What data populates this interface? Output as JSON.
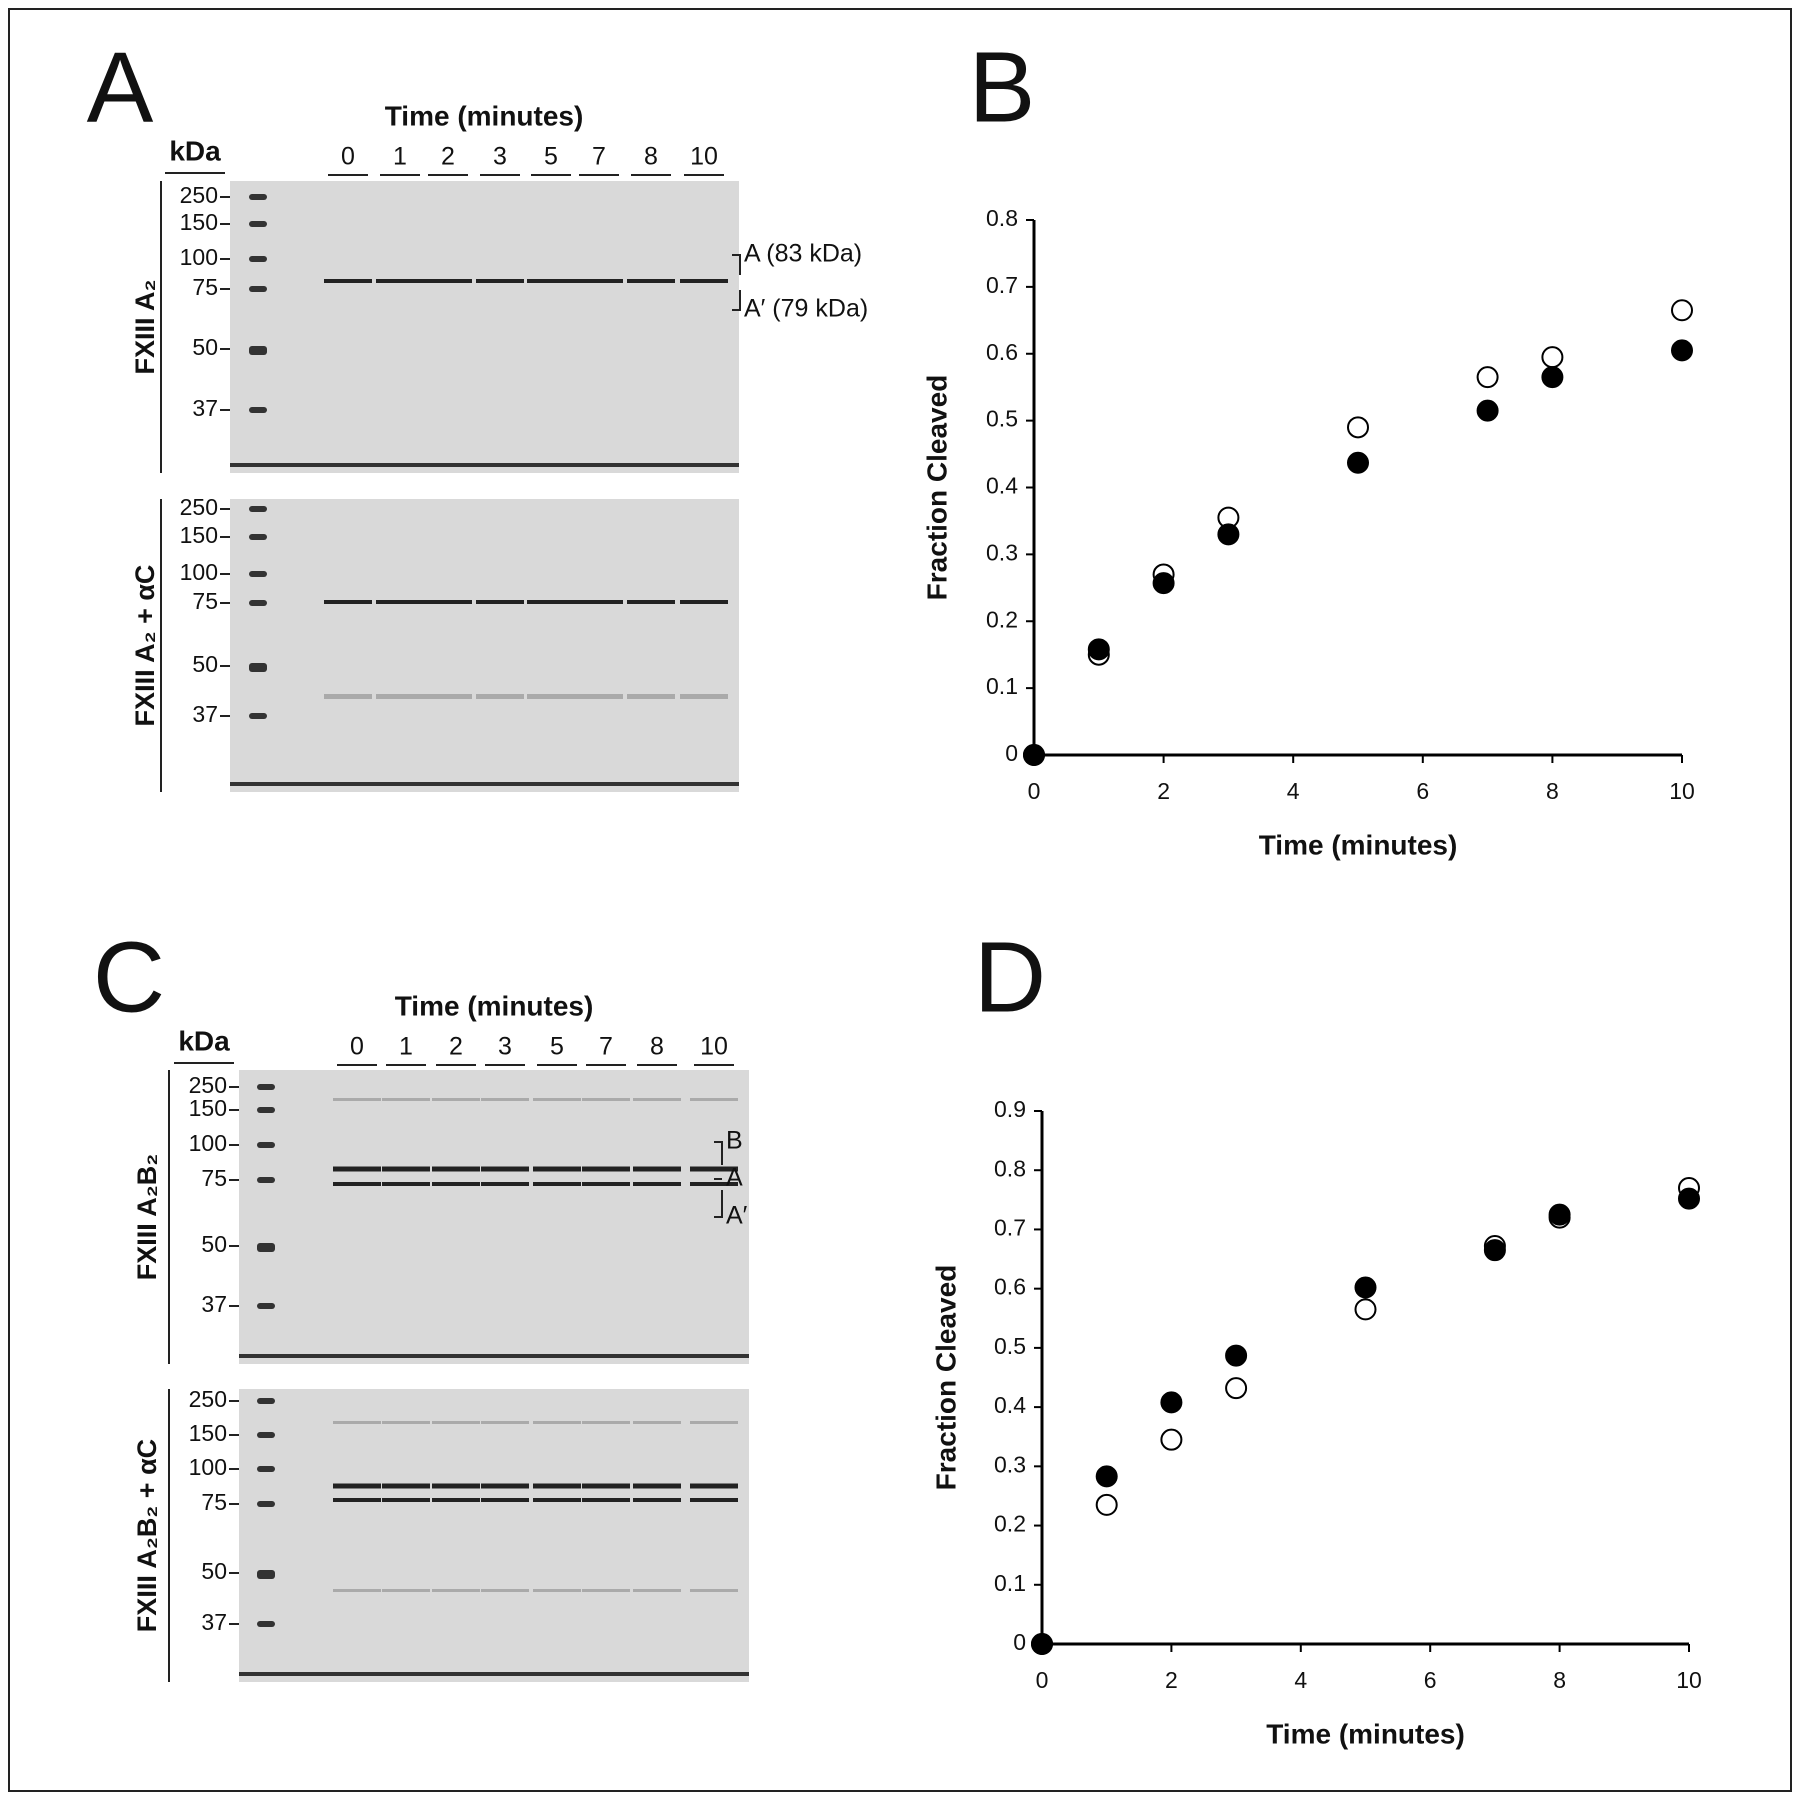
{
  "gels": [
    {
      "panel": "A",
      "time_label": "Time (minutes)",
      "kda_label": "kDa",
      "lanes": [
        "0",
        "1",
        "2",
        "3",
        "5",
        "7",
        "8",
        "10"
      ],
      "blots": [
        {
          "label": "FXIII A₂",
          "markers": [
            "250",
            "150",
            "100",
            "75",
            "50",
            "37"
          ],
          "annotations": [
            "A (83 kDa)",
            "A′ (79 kDa)"
          ]
        },
        {
          "label": "FXIII A₂ + αC",
          "markers": [
            "250",
            "150",
            "100",
            "75",
            "50",
            "37"
          ]
        }
      ]
    },
    {
      "panel": "C",
      "time_label": "Time (minutes)",
      "kda_label": "kDa",
      "lanes": [
        "0",
        "1",
        "2",
        "3",
        "5",
        "7",
        "8",
        "10"
      ],
      "blots": [
        {
          "label": "FXIII A₂B₂",
          "markers": [
            "250",
            "150",
            "100",
            "75",
            "50",
            "37"
          ],
          "annotations": [
            "B",
            "A",
            "A′"
          ]
        },
        {
          "label": "FXIII A₂B₂ + αC",
          "markers": [
            "250",
            "150",
            "100",
            "75",
            "50",
            "37"
          ]
        }
      ]
    }
  ],
  "chart_data": [
    {
      "type": "scatter",
      "panel": "B",
      "xlabel": "Time (minutes)",
      "ylabel": "Fraction Cleaved",
      "x": [
        0,
        1,
        2,
        3,
        5,
        7,
        8,
        10
      ],
      "series": [
        {
          "color": "#000000",
          "marker": "open",
          "values": [
            0,
            0.15,
            0.27,
            0.355,
            0.49,
            0.565,
            0.595,
            0.665
          ]
        },
        {
          "color": "#000000",
          "marker": "filled",
          "values": [
            0,
            0.158,
            0.257,
            0.33,
            0.437,
            0.515,
            0.565,
            0.605
          ]
        }
      ],
      "xlim": [
        0,
        10
      ],
      "xticks": [
        0,
        2,
        4,
        6,
        8,
        10
      ],
      "ylim": [
        0,
        0.8
      ],
      "yticks": [
        0,
        0.1,
        0.2,
        0.3,
        0.4,
        0.5,
        0.6,
        0.7,
        0.8
      ]
    },
    {
      "type": "scatter",
      "panel": "D",
      "xlabel": "Time (minutes)",
      "ylabel": "Fraction Cleaved",
      "x": [
        0,
        1,
        2,
        3,
        5,
        7,
        8,
        10
      ],
      "series": [
        {
          "color": "#000000",
          "marker": "open",
          "values": [
            0,
            0.235,
            0.345,
            0.432,
            0.565,
            0.672,
            0.72,
            0.77
          ]
        },
        {
          "color": "#000000",
          "marker": "filled",
          "values": [
            0,
            0.283,
            0.408,
            0.487,
            0.602,
            0.665,
            0.725,
            0.752
          ]
        }
      ],
      "xlim": [
        0,
        10
      ],
      "xticks": [
        0,
        2,
        4,
        6,
        8,
        10
      ],
      "ylim": [
        0,
        0.9
      ],
      "yticks": [
        0,
        0.1,
        0.2,
        0.3,
        0.4,
        0.5,
        0.6,
        0.7,
        0.8,
        0.9
      ]
    }
  ]
}
